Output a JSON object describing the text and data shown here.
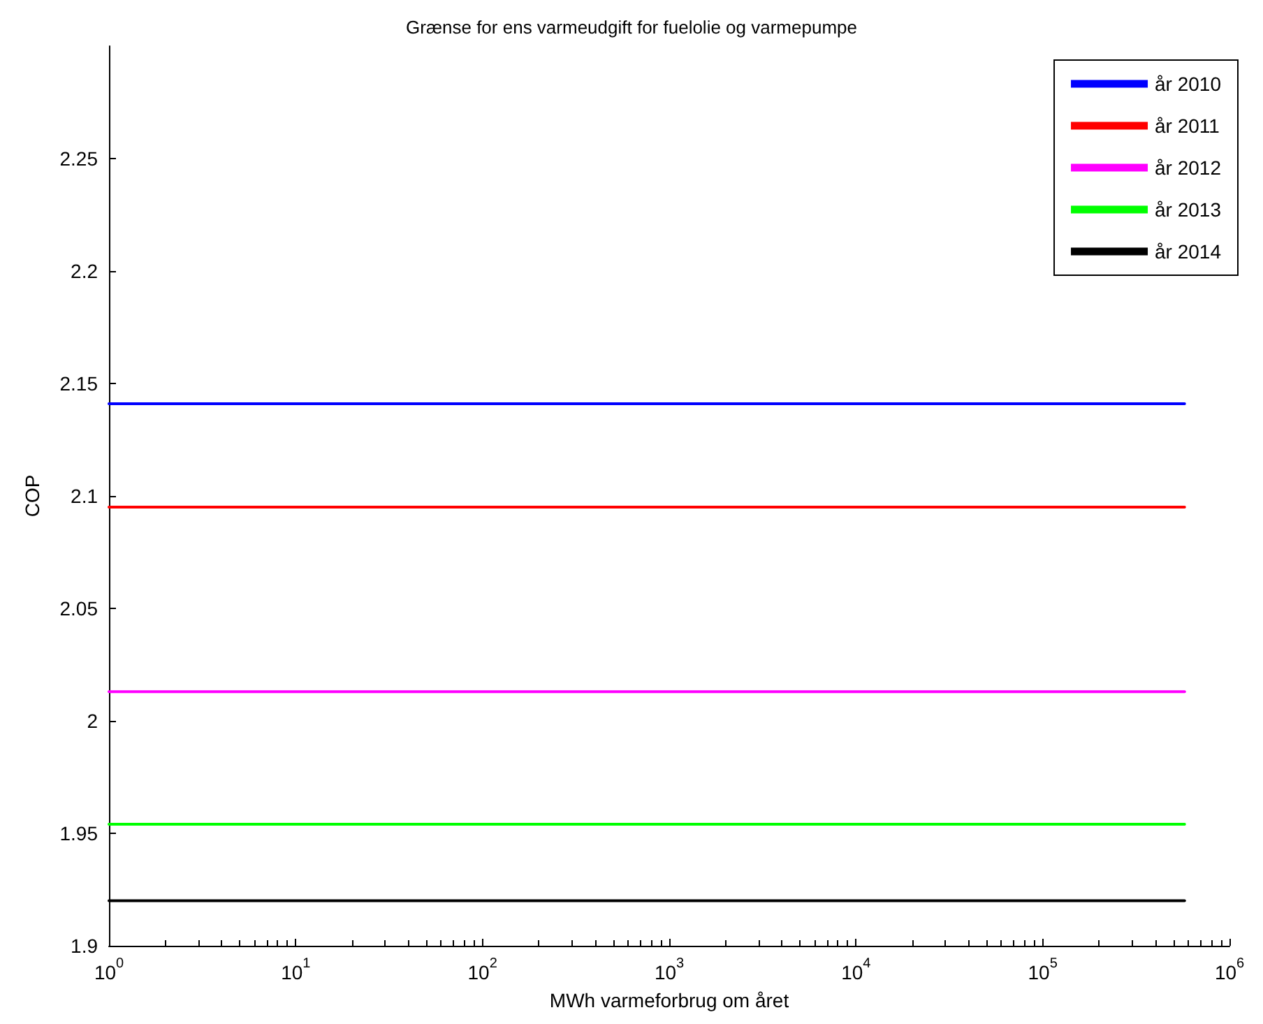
{
  "chart_data": {
    "type": "line",
    "title": "Grænse for ens varmeudgift for fuelolie og varmepumpe",
    "xlabel": "MWh varmeforbrug om året",
    "ylabel": "COP",
    "x": [
      1,
      575000
    ],
    "series": [
      {
        "name": "år 2010",
        "color": "#0000ff",
        "values": [
          2.141,
          2.141
        ]
      },
      {
        "name": "år 2011",
        "color": "#ff0000",
        "values": [
          2.095,
          2.095
        ]
      },
      {
        "name": "år 2012",
        "color": "#ff00ff",
        "values": [
          2.013,
          2.013
        ]
      },
      {
        "name": "år 2013",
        "color": "#00ff00",
        "values": [
          1.954,
          1.954
        ]
      },
      {
        "name": "år 2014",
        "color": "#000000",
        "values": [
          1.92,
          1.92
        ]
      }
    ],
    "log": "x",
    "xlim": [
      1,
      1000000
    ],
    "xticks": [
      {
        "value": 1,
        "label": "10$^{0}$"
      },
      {
        "value": 10,
        "label": "10$^{1}$"
      },
      {
        "value": 100,
        "label": "10$^{2}$"
      },
      {
        "value": 1000,
        "label": "10$^{3}$"
      },
      {
        "value": 10000,
        "label": "10$^{4}$"
      },
      {
        "value": 100000,
        "label": "10$^{5}$"
      },
      {
        "value": 1000000,
        "label": "10$^{6}$"
      }
    ],
    "ylim": [
      1.9,
      2.3
    ],
    "yticks": [
      1.9,
      1.95,
      2,
      2.05,
      2.1,
      2.15,
      2.2,
      2.25
    ],
    "grid": false,
    "legend": "top right",
    "marker": "none",
    "line_style": "solid"
  }
}
